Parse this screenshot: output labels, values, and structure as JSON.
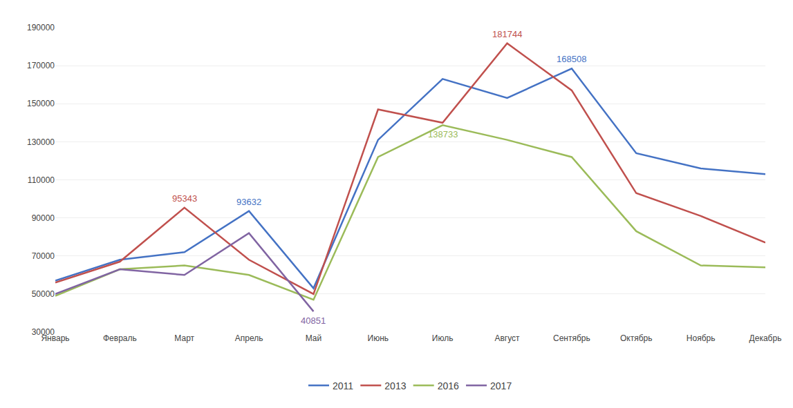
{
  "chart_data": {
    "type": "line",
    "categories": [
      "Январь",
      "Февраль",
      "Март",
      "Апрель",
      "Май",
      "Июнь",
      "Июль",
      "Август",
      "Сентябрь",
      "Октябрь",
      "Ноябрь",
      "Декабрь"
    ],
    "series": [
      {
        "name": "2011",
        "color": "#4472C4",
        "values": [
          57000,
          68000,
          72000,
          93632,
          53000,
          131000,
          163000,
          153000,
          168508,
          124000,
          116000,
          113000
        ]
      },
      {
        "name": "2013",
        "color": "#C0504D",
        "values": [
          56000,
          67000,
          95343,
          68000,
          50000,
          147000,
          140000,
          181744,
          157000,
          103000,
          91000,
          77000
        ]
      },
      {
        "name": "2016",
        "color": "#9BBB59",
        "values": [
          49000,
          63000,
          65000,
          60000,
          47000,
          122000,
          138733,
          131000,
          122000,
          83000,
          65000,
          64000
        ]
      },
      {
        "name": "2017",
        "color": "#8064A2",
        "values": [
          50000,
          63000,
          60000,
          82000,
          40851,
          null,
          null,
          null,
          null,
          null,
          null,
          null
        ]
      }
    ],
    "annotations": [
      {
        "series": "2011",
        "x": "Сентябрь",
        "value": 168508,
        "text": "168508"
      },
      {
        "series": "2013",
        "x": "Август",
        "value": 181744,
        "text": "181744"
      },
      {
        "series": "2013",
        "x": "Март",
        "value": 95343,
        "text": "95343"
      },
      {
        "series": "2011",
        "x": "Апрель",
        "value": 93632,
        "text": "93632"
      },
      {
        "series": "2016",
        "x": "Июль",
        "value": 138733,
        "text": "138733"
      },
      {
        "series": "2017",
        "x": "Май",
        "value": 40851,
        "text": "40851"
      }
    ],
    "ylim": [
      30000,
      190000
    ],
    "yticks": [
      30000,
      50000,
      70000,
      90000,
      110000,
      130000,
      150000,
      170000,
      190000
    ],
    "grid": true,
    "legend": "bottom"
  }
}
